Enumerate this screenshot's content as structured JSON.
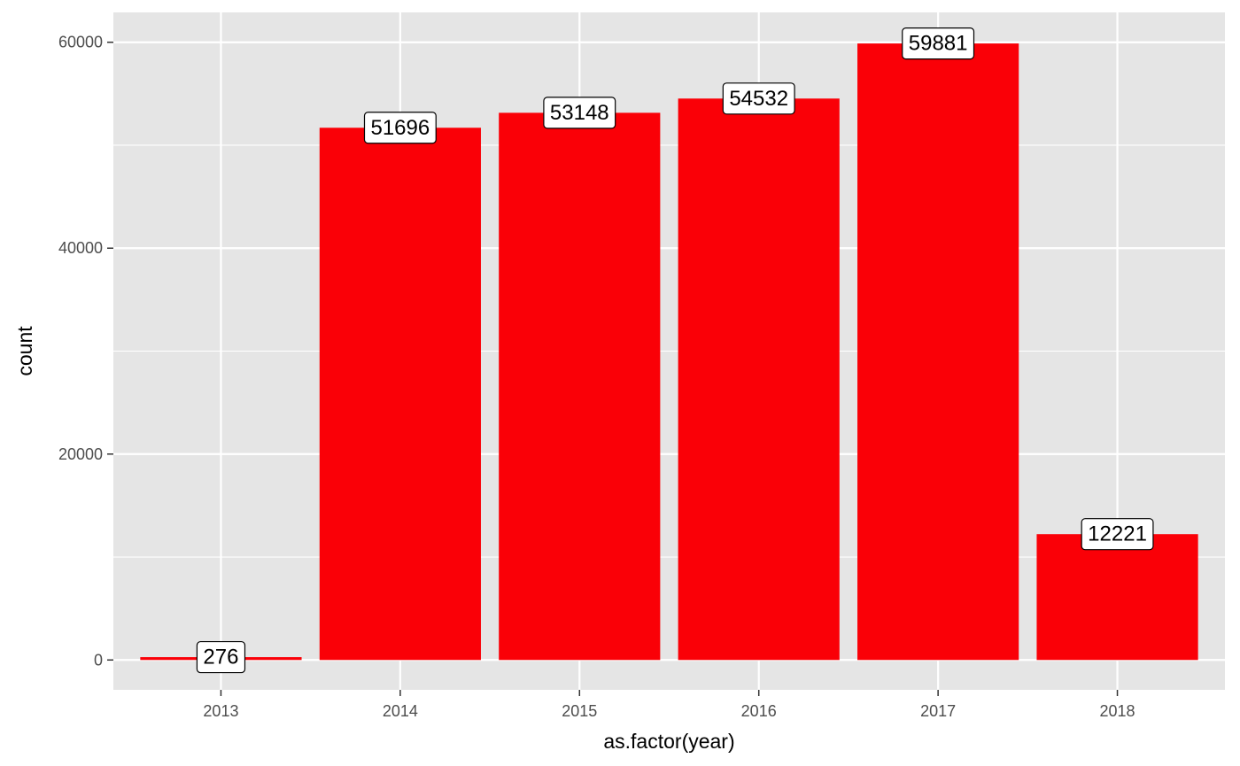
{
  "chart_data": {
    "type": "bar",
    "categories": [
      "2013",
      "2014",
      "2015",
      "2016",
      "2017",
      "2018"
    ],
    "values": [
      276,
      51696,
      53148,
      54532,
      59881,
      12221
    ],
    "data_labels": [
      "276",
      "51696",
      "53148",
      "54532",
      "59881",
      "12221"
    ],
    "xlabel": "as.factor(year)",
    "ylabel": "count",
    "ylim": [
      -2900,
      62900
    ],
    "yticks": [
      0,
      20000,
      40000,
      60000
    ],
    "ytick_labels": [
      "0",
      "20000",
      "40000",
      "60000"
    ],
    "grid": true,
    "legend": "none",
    "colors": {
      "bar": "#fa0007",
      "panel_background": "#e5e5e5",
      "grid": "#ffffff",
      "label_fill": "#ffffff",
      "label_border": "#000000"
    }
  }
}
